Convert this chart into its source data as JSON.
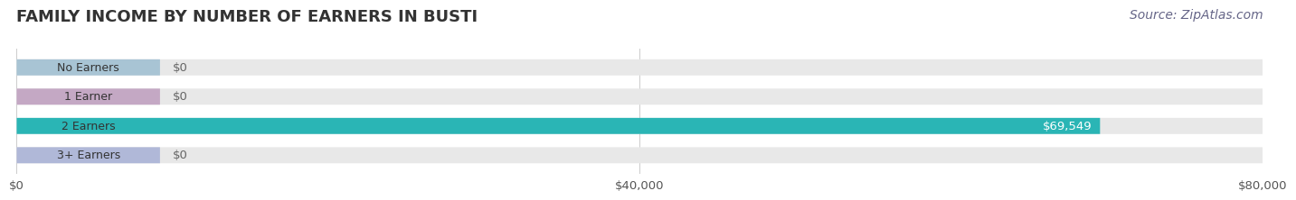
{
  "title": "FAMILY INCOME BY NUMBER OF EARNERS IN BUSTI",
  "source": "Source: ZipAtlas.com",
  "categories": [
    "No Earners",
    "1 Earner",
    "2 Earners",
    "3+ Earners"
  ],
  "values": [
    0,
    0,
    69549,
    0
  ],
  "bar_colors": [
    "#a8c4d4",
    "#c4a8c4",
    "#2ab5b5",
    "#b0b8d8"
  ],
  "bar_bg_color": "#e8e8e8",
  "label_colors": [
    "#888888",
    "#888888",
    "#ffffff",
    "#888888"
  ],
  "value_labels": [
    "$0",
    "$0",
    "$69,549",
    "$0"
  ],
  "xlim": [
    0,
    80000
  ],
  "xtick_labels": [
    "$0",
    "$40,000",
    "$80,000"
  ],
  "fig_bg_color": "#ffffff",
  "bar_height": 0.55,
  "title_color": "#333333",
  "title_fontsize": 13,
  "source_color": "#666688",
  "source_fontsize": 10
}
